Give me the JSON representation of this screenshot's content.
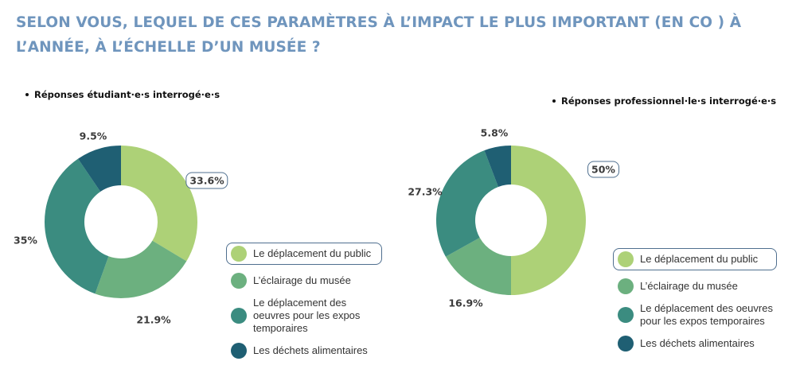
{
  "title": "SELON VOUS, LEQUEL DE CES PARAMÈTRES À L’IMPACT LE PLUS IMPORTANT (EN CO ) À L’ANNÉE, À L’ÉCHELLE D’UN MUSÉE ?",
  "categories": [
    "Le déplacement du public",
    "L’éclairage du musée",
    "Le déplacement des oeuvres pour les expos temporaires",
    "Les déchets alimentaires"
  ],
  "colors": [
    "#add177",
    "#6cb07f",
    "#3b8c80",
    "#1f5f73"
  ],
  "chart_data": [
    {
      "type": "pie",
      "subtitle": "Réponses étudiant·e·s interrogé·e·s",
      "categories": [
        "Le déplacement du public",
        "L’éclairage du musée",
        "Le déplacement des oeuvres pour les expos temporaires",
        "Les déchets alimentaires"
      ],
      "values": [
        33.6,
        21.9,
        35,
        9.5
      ],
      "labels": [
        "33.6%",
        "21.9%",
        "35%",
        "9.5%"
      ],
      "highlighted": "Le déplacement du public"
    },
    {
      "type": "pie",
      "subtitle": "Réponses professionnel·le·s interrogé·e·s",
      "categories": [
        "Le déplacement du public",
        "L’éclairage du musée",
        "Le déplacement des oeuvres pour les expos temporaires",
        "Les déchets alimentaires"
      ],
      "values": [
        50,
        16.9,
        27.3,
        5.8
      ],
      "labels": [
        "50%",
        "16.9%",
        "27.3%",
        "5.8%"
      ],
      "highlighted": "Le déplacement du public"
    }
  ]
}
